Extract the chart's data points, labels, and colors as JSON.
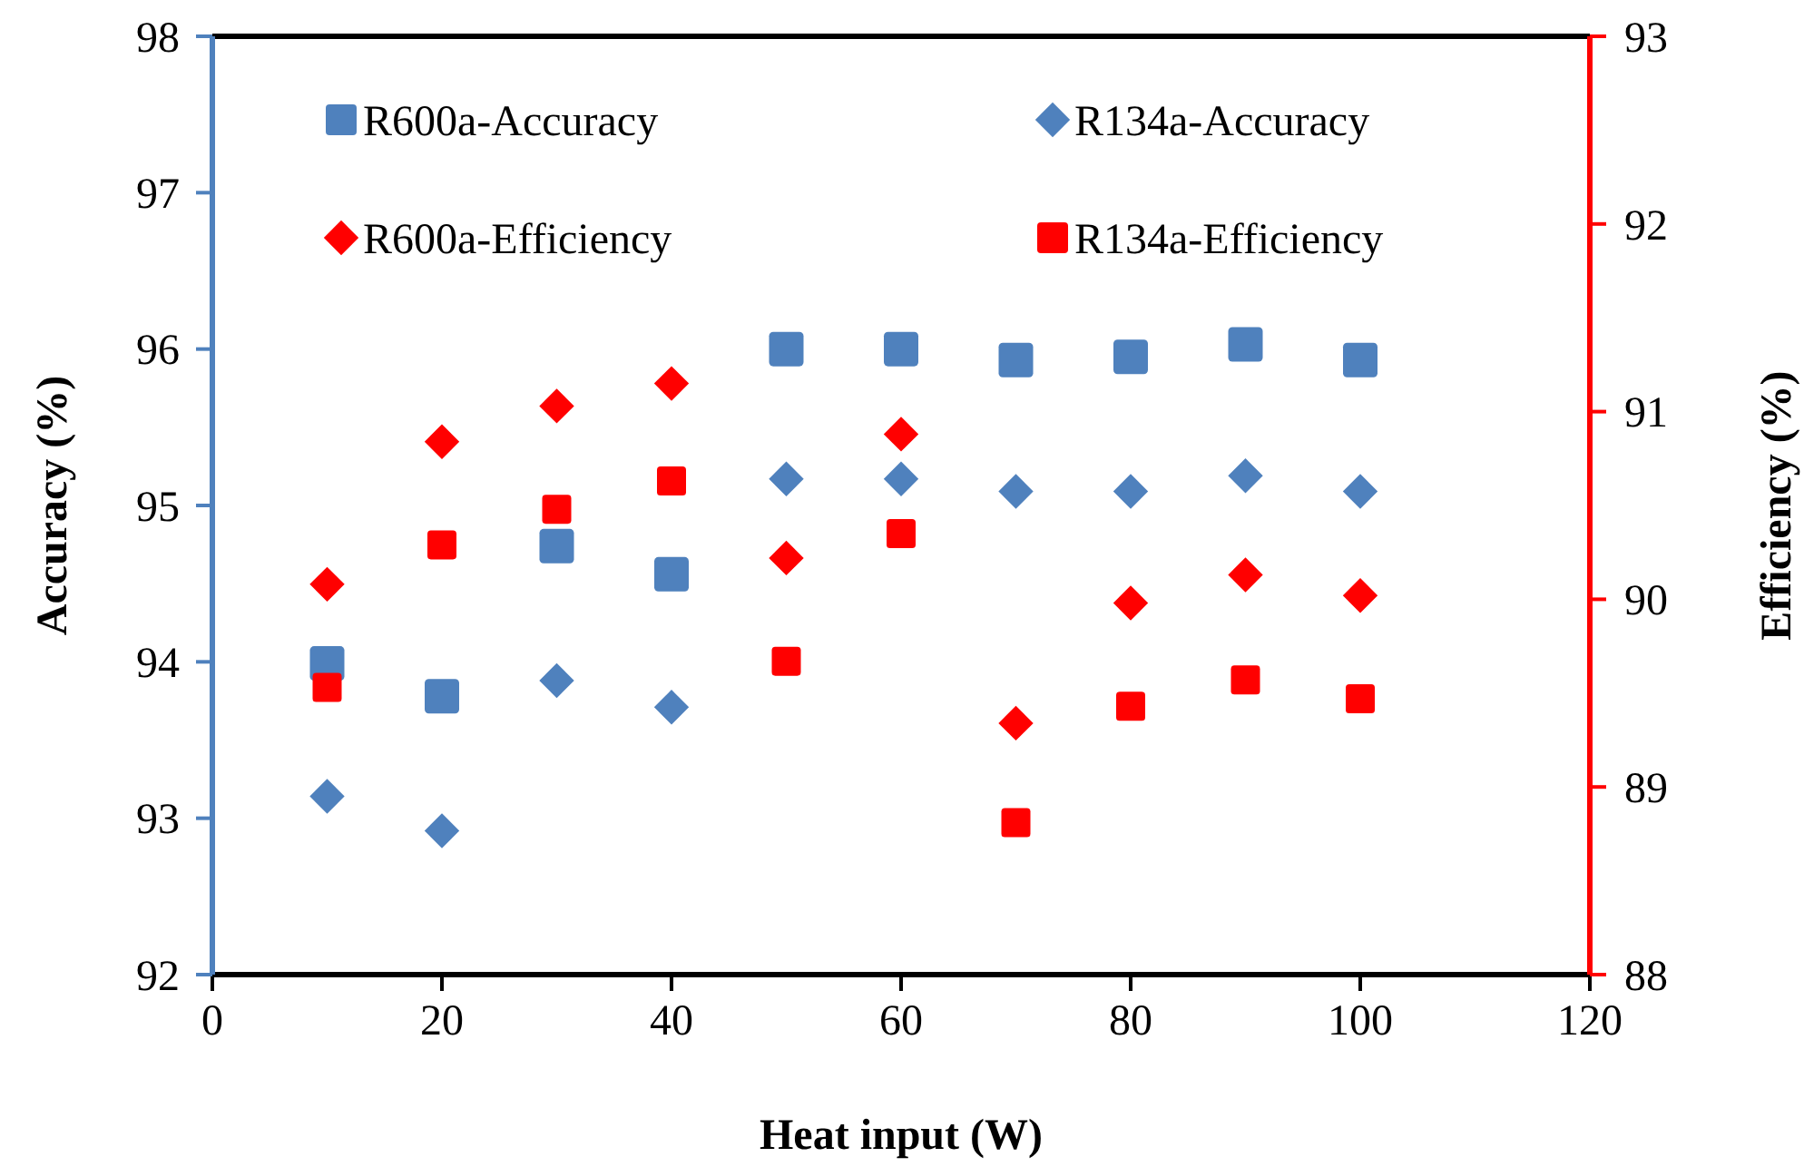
{
  "chart_data": {
    "type": "scatter",
    "xlabel": "Heat input (W)",
    "ylabel": "Accuracy (%)",
    "y2label": "Efficiency (%)",
    "x": [
      10,
      20,
      30,
      40,
      50,
      60,
      70,
      80,
      90,
      100
    ],
    "xlim": [
      0,
      120
    ],
    "xticks": [
      0,
      20,
      40,
      60,
      80,
      100,
      120
    ],
    "ylim": [
      92,
      98
    ],
    "yticks": [
      92,
      93,
      94,
      95,
      96,
      97,
      98
    ],
    "y2lim": [
      88,
      93
    ],
    "y2ticks": [
      88,
      89,
      90,
      91,
      92,
      93
    ],
    "grid": false,
    "legend": "top",
    "series": [
      {
        "name": "R600a-Accuracy",
        "color": "#4f81bd",
        "marker": "square",
        "values": [
          93.99,
          93.78,
          94.74,
          94.56,
          96.0,
          96.0,
          95.93,
          95.95,
          96.03,
          95.93
        ]
      },
      {
        "name": "R134a-Accuracy",
        "color": "#4f81bd",
        "marker": "diamond",
        "values": [
          93.14,
          92.92,
          93.88,
          93.71,
          95.17,
          95.17,
          95.09,
          95.09,
          95.19,
          95.09
        ]
      },
      {
        "name": "R600a-Efficiency",
        "color": "#ff0000",
        "marker": "diamond",
        "axis": "y2",
        "values": [
          90.08,
          90.84,
          91.03,
          91.15,
          90.22,
          90.88,
          89.34,
          89.98,
          90.13,
          90.02
        ]
      },
      {
        "name": "R134a-Efficiency",
        "color": "#ff0000",
        "marker": "square",
        "axis": "y2",
        "values": [
          89.53,
          90.29,
          90.48,
          90.63,
          89.67,
          90.35,
          88.81,
          89.43,
          89.57,
          89.47
        ]
      }
    ]
  }
}
